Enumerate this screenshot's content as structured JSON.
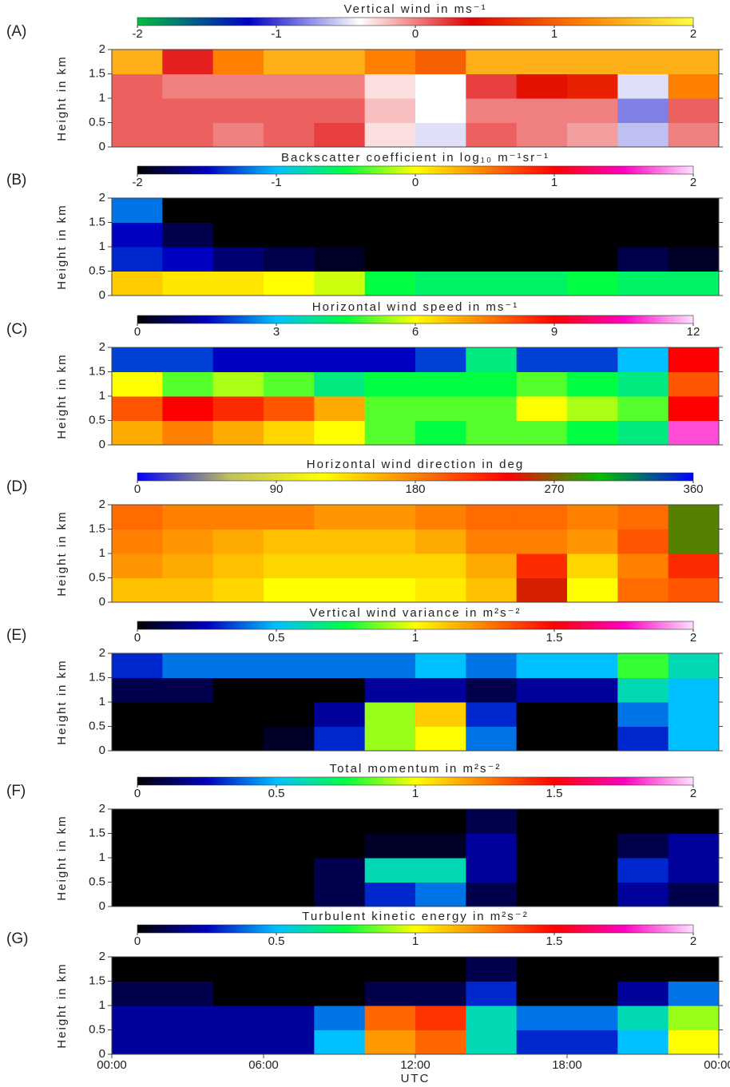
{
  "chart_data": [
    {
      "type": "heatmap",
      "panel_label": "(A)",
      "title": "Vertical wind in ms⁻¹",
      "ylabel": "Height in km",
      "ylim": [
        0,
        2
      ],
      "yticks": [
        0,
        0.5,
        1,
        1.5,
        2
      ],
      "xlim": [
        0,
        24
      ],
      "x": [
        1,
        3,
        5,
        7,
        9,
        11,
        13,
        15,
        17,
        19,
        21,
        23
      ],
      "y": [
        0.25,
        0.75,
        1.25,
        1.75
      ],
      "z": [
        [
          0.1,
          0.1,
          0,
          0.1,
          0.2,
          -0.3,
          -0.5,
          0.1,
          0,
          -0.1,
          -0.6,
          0
        ],
        [
          0.1,
          0.1,
          0.1,
          0.1,
          0.1,
          -0.2,
          -0.4,
          0,
          0,
          0,
          -0.8,
          0.1
        ],
        [
          0.1,
          0,
          0,
          0,
          0,
          -0.3,
          -0.4,
          0.2,
          0.5,
          0.6,
          -0.5,
          1.2
        ],
        [
          1.5,
          0.3,
          1.2,
          1.5,
          1.5,
          1.2,
          1.0,
          1.5,
          1.5,
          1.5,
          1.5,
          1.5
        ]
      ],
      "zlim": [
        -2,
        2
      ],
      "zticks": [
        -2,
        -1,
        0,
        1,
        2
      ],
      "colormap": [
        "#00c040",
        "#0000c8",
        "#ffffff",
        "#e00000",
        "#ff8000",
        "#ffff40"
      ]
    },
    {
      "type": "heatmap",
      "panel_label": "(B)",
      "title": "Backscatter coefficient in log₁₀ m⁻¹sr⁻¹",
      "ylabel": "Height in km",
      "ylim": [
        0,
        2
      ],
      "yticks": [
        0,
        0.5,
        1,
        1.5,
        2
      ],
      "xlim": [
        0,
        24
      ],
      "x": [
        1,
        3,
        5,
        7,
        9,
        11,
        13,
        15,
        17,
        19,
        21,
        23
      ],
      "y": [
        0.25,
        0.75,
        1.25,
        1.75
      ],
      "z": [
        [
          0.2,
          0.1,
          0.1,
          0,
          -0.1,
          -0.5,
          -0.6,
          -0.6,
          -0.6,
          -0.5,
          -0.6,
          -0.6
        ],
        [
          -1.4,
          -1.5,
          -1.7,
          -1.8,
          -1.9,
          -2,
          -2,
          -2,
          -2,
          -2,
          -1.8,
          -1.9
        ],
        [
          -1.5,
          -1.8,
          -2,
          -2,
          -2,
          -2,
          -2,
          -2,
          -2,
          -2,
          -2,
          -2
        ],
        [
          -1.2,
          -2,
          -2,
          -2,
          -2,
          -2,
          -2,
          -2,
          -2,
          -2,
          -2,
          -2
        ]
      ],
      "zlim": [
        -2,
        2
      ],
      "zticks": [
        -2,
        -1,
        0,
        1,
        2
      ],
      "colormap": [
        "#000000",
        "#0000c0",
        "#00c0ff",
        "#00ff40",
        "#ffff00",
        "#ff8000",
        "#ff0000",
        "#ff00c0",
        "#ffe0ff"
      ]
    },
    {
      "type": "heatmap",
      "panel_label": "(C)",
      "title": "Horizontal wind speed in ms⁻¹",
      "ylabel": "Height in km",
      "ylim": [
        0,
        2
      ],
      "yticks": [
        0,
        0.5,
        1,
        1.5,
        2
      ],
      "xlim": [
        0,
        24
      ],
      "x": [
        1,
        3,
        5,
        7,
        9,
        11,
        13,
        15,
        17,
        19,
        21,
        23
      ],
      "y": [
        0.25,
        0.75,
        1.25,
        1.75
      ],
      "z": [
        [
          7,
          7.5,
          7,
          6.5,
          6,
          5,
          4.5,
          5,
          5,
          4.5,
          4,
          11
        ],
        [
          8,
          9,
          8.5,
          8,
          7,
          5,
          5,
          5,
          6,
          5.5,
          5,
          9
        ],
        [
          6,
          5,
          5.5,
          5,
          4,
          4.5,
          4.5,
          4.5,
          5,
          4.5,
          4,
          8
        ],
        [
          2,
          2,
          1.5,
          1.5,
          1.5,
          1.5,
          2,
          4,
          2,
          2,
          3,
          9
        ]
      ],
      "zlim": [
        0,
        12
      ],
      "zticks": [
        0,
        3,
        6,
        9,
        12
      ],
      "colormap": [
        "#000000",
        "#0000c0",
        "#00c0ff",
        "#00ff40",
        "#ffff00",
        "#ff8000",
        "#ff0000",
        "#ff00c0",
        "#ffe0ff"
      ]
    },
    {
      "type": "heatmap",
      "panel_label": "(D)",
      "title": "Horizontal wind direction in deg",
      "ylabel": "Height in km",
      "ylim": [
        0,
        2
      ],
      "yticks": [
        0,
        0.5,
        1,
        1.5,
        2
      ],
      "xlim": [
        0,
        24
      ],
      "x": [
        1,
        3,
        5,
        7,
        9,
        11,
        13,
        15,
        17,
        19,
        21,
        23
      ],
      "y": [
        0.25,
        0.75,
        1.25,
        1.75
      ],
      "z": [
        [
          150,
          150,
          140,
          120,
          120,
          120,
          130,
          150,
          250,
          120,
          190,
          200
        ],
        [
          170,
          160,
          150,
          140,
          140,
          140,
          140,
          160,
          220,
          140,
          180,
          220
        ],
        [
          180,
          170,
          160,
          150,
          150,
          150,
          160,
          180,
          180,
          170,
          200,
          280
        ],
        [
          190,
          180,
          180,
          180,
          170,
          170,
          180,
          190,
          190,
          180,
          190,
          280
        ]
      ],
      "zlim": [
        0,
        360
      ],
      "zticks": [
        0,
        90,
        180,
        270,
        360
      ],
      "colormap": [
        "#0000ff",
        "#c0c060",
        "#ffff00",
        "#ff8000",
        "#ff0000",
        "#00c000",
        "#0000ff"
      ]
    },
    {
      "type": "heatmap",
      "panel_label": "(E)",
      "title": "Vertical wind variance in m²s⁻²",
      "ylabel": "Height in km",
      "ylim": [
        0,
        2
      ],
      "yticks": [
        0,
        0.5,
        1,
        1.5,
        2
      ],
      "xlim": [
        0,
        24
      ],
      "x": [
        1,
        3,
        5,
        7,
        9,
        11,
        13,
        15,
        17,
        19,
        21,
        23
      ],
      "y": [
        0.25,
        0.75,
        1.25,
        1.75
      ],
      "z": [
        [
          0,
          0,
          0,
          0.05,
          0.3,
          0.9,
          1.0,
          0.4,
          0,
          0,
          0.3,
          0.5
        ],
        [
          0,
          0,
          0,
          0,
          0.2,
          0.9,
          1.1,
          0.3,
          0,
          0,
          0.4,
          0.5
        ],
        [
          0.1,
          0.1,
          0,
          0,
          0,
          0.2,
          0.2,
          0.1,
          0.2,
          0.2,
          0.6,
          0.5
        ],
        [
          0.3,
          0.4,
          0.4,
          0.4,
          0.4,
          0.4,
          0.5,
          0.4,
          0.5,
          0.5,
          0.8,
          0.6
        ]
      ],
      "zlim": [
        0,
        2
      ],
      "zticks": [
        0,
        0.5,
        1,
        1.5,
        2
      ],
      "colormap": [
        "#000000",
        "#0000c0",
        "#00c0ff",
        "#00ff40",
        "#ffff00",
        "#ff8000",
        "#ff0000",
        "#ff00c0",
        "#ffe0ff"
      ]
    },
    {
      "type": "heatmap",
      "panel_label": "(F)",
      "title": "Total momentum in m²s⁻²",
      "ylabel": "Height in km",
      "ylim": [
        0,
        2
      ],
      "yticks": [
        0,
        0.5,
        1,
        1.5,
        2
      ],
      "xlim": [
        0,
        24
      ],
      "x": [
        1,
        3,
        5,
        7,
        9,
        11,
        13,
        15,
        17,
        19,
        21,
        23
      ],
      "y": [
        0.25,
        0.75,
        1.25,
        1.75
      ],
      "z": [
        [
          0,
          0,
          0,
          0,
          0.1,
          0.3,
          0.4,
          0.1,
          0,
          0,
          0.2,
          0.1
        ],
        [
          0,
          0,
          0,
          0,
          0.1,
          0.6,
          0.6,
          0.2,
          0,
          0,
          0.3,
          0.2
        ],
        [
          0,
          0,
          0,
          0,
          0,
          0.05,
          0.05,
          0.2,
          0,
          0,
          0.1,
          0.2
        ],
        [
          0,
          0,
          0,
          0,
          0,
          0,
          0,
          0.1,
          0,
          0,
          0,
          0
        ]
      ],
      "zlim": [
        0,
        2
      ],
      "zticks": [
        0,
        0.5,
        1,
        1.5,
        2
      ],
      "colormap": [
        "#000000",
        "#0000c0",
        "#00c0ff",
        "#00ff40",
        "#ffff00",
        "#ff8000",
        "#ff0000",
        "#ff00c0",
        "#ffe0ff"
      ]
    },
    {
      "type": "heatmap",
      "panel_label": "(G)",
      "title": "Turbulent kinetic energy in m²s⁻²",
      "ylabel": "Height in km",
      "xlabel": "UTC",
      "ylim": [
        0,
        2
      ],
      "yticks": [
        0,
        0.5,
        1,
        1.5,
        2
      ],
      "xlim": [
        0,
        24
      ],
      "xticks": [
        {
          "value": 0,
          "label": "00:00"
        },
        {
          "value": 6,
          "label": "06:00"
        },
        {
          "value": 12,
          "label": "12:00"
        },
        {
          "value": 18,
          "label": "18:00"
        },
        {
          "value": 24,
          "label": "00:00"
        }
      ],
      "x": [
        1,
        3,
        5,
        7,
        9,
        11,
        13,
        15,
        17,
        19,
        21,
        23
      ],
      "y": [
        0.25,
        0.75,
        1.25,
        1.75
      ],
      "z": [
        [
          0.2,
          0.2,
          0.2,
          0.2,
          0.5,
          1.2,
          1.3,
          0.6,
          0.3,
          0.3,
          0.5,
          1.0
        ],
        [
          0.2,
          0.2,
          0.2,
          0.2,
          0.4,
          1.3,
          1.4,
          0.6,
          0.4,
          0.4,
          0.6,
          0.9
        ],
        [
          0.1,
          0.1,
          0,
          0,
          0,
          0.1,
          0.1,
          0.3,
          0,
          0,
          0.2,
          0.4
        ],
        [
          0,
          0,
          0,
          0,
          0,
          0,
          0,
          0.1,
          0,
          0,
          0,
          0
        ]
      ],
      "zlim": [
        0,
        2
      ],
      "zticks": [
        0,
        0.5,
        1,
        1.5,
        2
      ],
      "colormap": [
        "#000000",
        "#0000c0",
        "#00c0ff",
        "#00ff40",
        "#ffff00",
        "#ff8000",
        "#ff0000",
        "#ff00c0",
        "#ffe0ff"
      ]
    }
  ]
}
